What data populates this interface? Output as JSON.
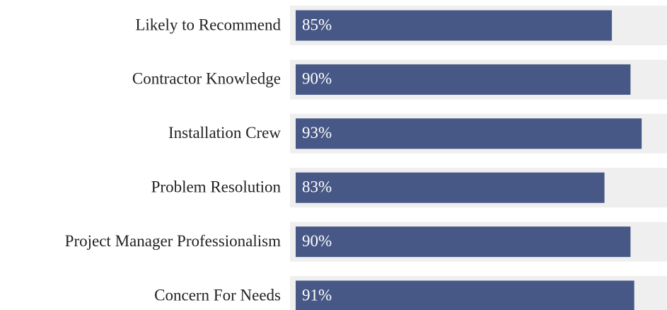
{
  "chart_data": {
    "type": "bar",
    "orientation": "horizontal",
    "categories": [
      "Likely to Recommend",
      "Contractor Knowledge",
      "Installation Crew",
      "Problem Resolution",
      "Project Manager Professionalism",
      "Concern For Needs"
    ],
    "values": [
      85,
      90,
      93,
      83,
      90,
      91
    ],
    "value_labels": [
      "85%",
      "90%",
      "93%",
      "83%",
      "90%",
      "91%"
    ],
    "color": "#475886",
    "xlim": [
      0,
      100
    ]
  }
}
